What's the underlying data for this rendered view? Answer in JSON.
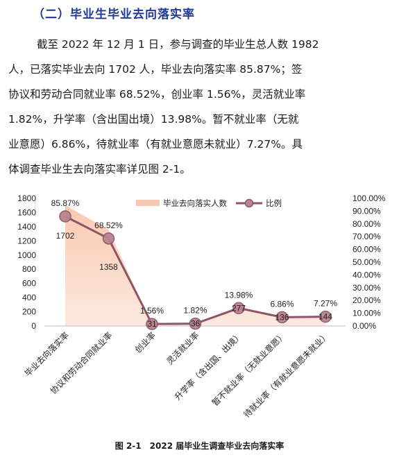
{
  "section_heading": "（二）毕业生毕业去向落实率",
  "paragraph_lines": [
    "截至 2022 年 12 月 1 日，参与调查的毕业生总人数 1982",
    "人，已落实毕业去向 1702 人，毕业去向落实率 85.87%；签",
    "协议和劳动合同就业率 68.52%，创业率 1.56%，灵活就业率",
    "1.82%，升学率（含出国出境）13.98%。暂不就业率（无就",
    "业意愿）6.86%，待就业率（有就业意愿未就业）7.27%。具",
    "体调查毕业生去向落实率详见图 2-1。"
  ],
  "colors": {
    "heading": "#1f3a93",
    "area_fill": "#f8c9b1",
    "area_fill_light": "#fde9df",
    "line": "#8c5566",
    "marker": "#b98390"
  },
  "chart_data": {
    "type": "line",
    "categories": [
      "毕业去向落实率",
      "协议和劳动合同就业率",
      "创业率",
      "灵活就业率",
      "升学率（含出国、出境）",
      "暂不就业率（无就业意愿）",
      "待就业率（有就业意愿未就业）"
    ],
    "series": [
      {
        "name": "毕业去向落实人数",
        "kind": "area",
        "axis": "left",
        "values": [
          1702,
          1358,
          31,
          36,
          277,
          136,
          144
        ],
        "labels": [
          "1702",
          "1358",
          "31",
          "36",
          "277",
          "136",
          "144"
        ]
      },
      {
        "name": "比例",
        "kind": "line",
        "axis": "right",
        "values": [
          85.87,
          68.52,
          1.56,
          1.82,
          13.98,
          6.86,
          7.27
        ],
        "labels": [
          "85.87%",
          "68.52%",
          "1.56%",
          "1.82%",
          "13.98%",
          "6.86%",
          "7.27%"
        ]
      }
    ],
    "y_left": {
      "ylim": [
        0,
        1800
      ],
      "ticks": [
        "0",
        "200",
        "400",
        "600",
        "800",
        "1000",
        "1200",
        "1400",
        "1600",
        "1800"
      ]
    },
    "y_right": {
      "ylim": [
        0,
        100
      ],
      "ticks": [
        "0.00%",
        "10.00%",
        "20.00%",
        "30.00%",
        "40.00%",
        "50.00%",
        "60.00%",
        "70.00%",
        "80.00%",
        "90.00%",
        "100.00%"
      ]
    },
    "legend_position": "top",
    "grid": false
  },
  "caption": "图 2-1　2022 届毕业生调查毕业去向落实率"
}
